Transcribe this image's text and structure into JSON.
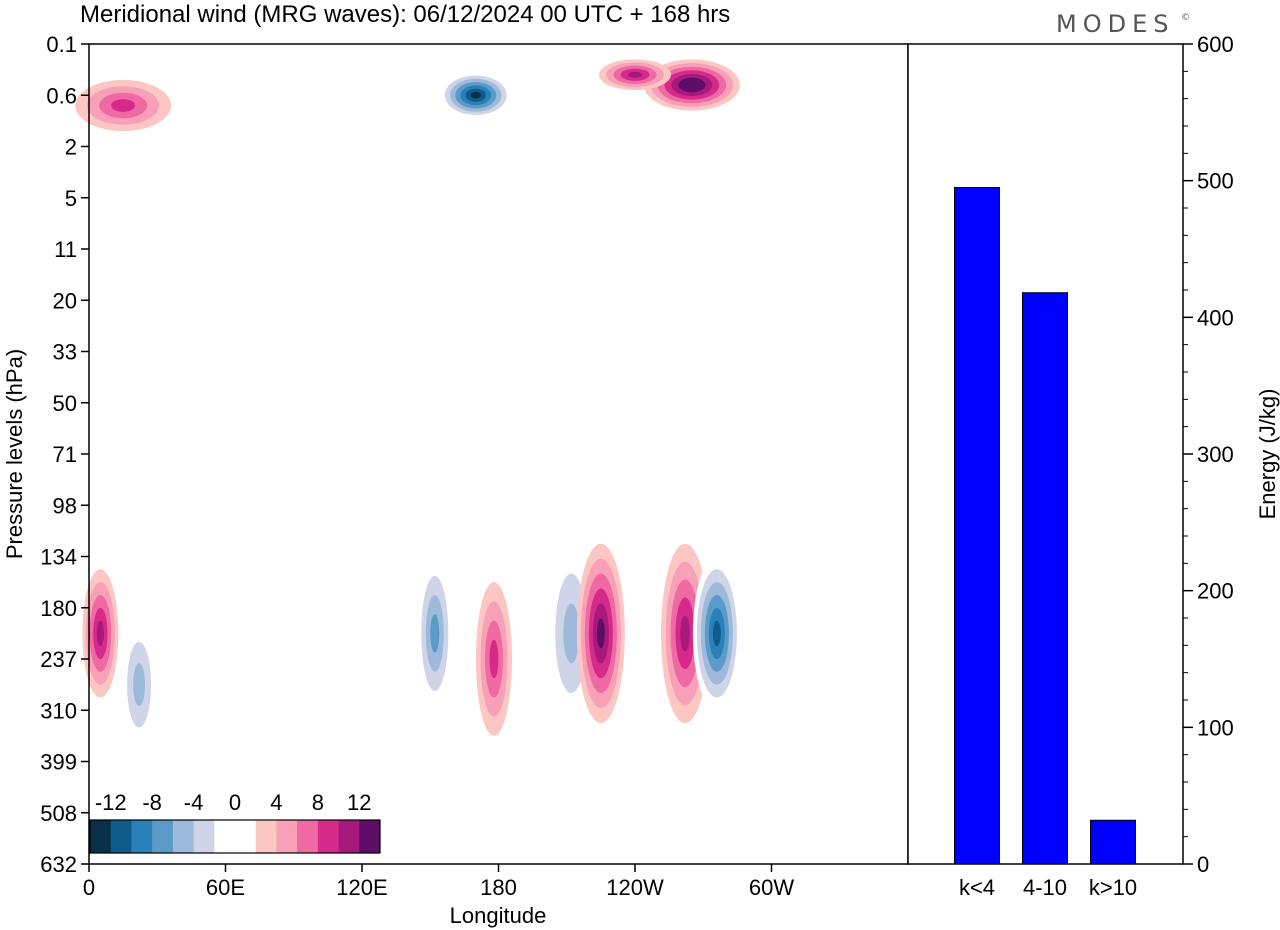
{
  "title": "Meridional wind (MRG waves):  06/12/2024  00 UTC  + 168 hrs",
  "logo": "MODES",
  "logo_mark": "©",
  "chart_data": [
    {
      "type": "heatmap",
      "title": "Meridional wind (MRG waves):  06/12/2024  00 UTC  + 168 hrs",
      "xlabel": "Longitude",
      "ylabel": "Pressure levels (hPa)",
      "x_ticks": [
        "0",
        "60E",
        "120E",
        "180",
        "120W",
        "60W"
      ],
      "y_ticks": [
        "0.1",
        "0.6",
        "2",
        "5",
        "11",
        "20",
        "33",
        "50",
        "71",
        "98",
        "134",
        "180",
        "237",
        "310",
        "399",
        "508",
        "632"
      ],
      "colorbar_ticks": [
        "-12",
        "-8",
        "-4",
        "0",
        "4",
        "8",
        "12"
      ],
      "colorbar_colors": [
        "#0a2f4a",
        "#0f5c8c",
        "#2a80b9",
        "#5b9bc9",
        "#9dbada",
        "#cfd4e8",
        "#ffffff",
        "#ffffff",
        "#fcc7c3",
        "#f8a0b8",
        "#ef6aa2",
        "#d62a8b",
        "#a7197d",
        "#5e0d69"
      ],
      "features": [
        {
          "lon": 170,
          "level": 1,
          "value": -14,
          "w": 6,
          "h": 0.9
        },
        {
          "lon": 265,
          "level": 0.8,
          "value": 14,
          "w": 8,
          "h": 1.0
        },
        {
          "lon": 240,
          "level": 0.6,
          "value": 10,
          "w": 6,
          "h": 0.6
        },
        {
          "lon": 15,
          "level": 1.2,
          "value": 8,
          "w": 8,
          "h": 1.0
        },
        {
          "lon": 212,
          "level": 11.5,
          "value": -6,
          "w": 4,
          "h": 3.5
        },
        {
          "lon": 225,
          "level": 11.5,
          "value": 12,
          "w": 4,
          "h": 3.5
        },
        {
          "lon": 262,
          "level": 11.5,
          "value": 10,
          "w": 4,
          "h": 3.5
        },
        {
          "lon": 276,
          "level": 11.5,
          "value": -12,
          "w": 4,
          "h": 3.0
        },
        {
          "lon": 152,
          "level": 11.5,
          "value": -7,
          "w": 3,
          "h": 3.0
        },
        {
          "lon": 178,
          "level": 12,
          "value": 8,
          "w": 3,
          "h": 3.0
        },
        {
          "lon": 5,
          "level": 11.5,
          "value": 9,
          "w": 3,
          "h": 2.5
        },
        {
          "lon": 22,
          "level": 12.5,
          "value": -6,
          "w": 3,
          "h": 2.5
        }
      ]
    },
    {
      "type": "bar",
      "categories": [
        "k<4",
        "4-10",
        "k>10"
      ],
      "values": [
        495,
        418,
        32
      ],
      "ylabel": "Energy (J/kg)",
      "ylim": [
        0,
        600
      ],
      "y_ticks": [
        "0",
        "100",
        "200",
        "300",
        "400",
        "500",
        "600"
      ],
      "color": "#0000ff"
    }
  ]
}
